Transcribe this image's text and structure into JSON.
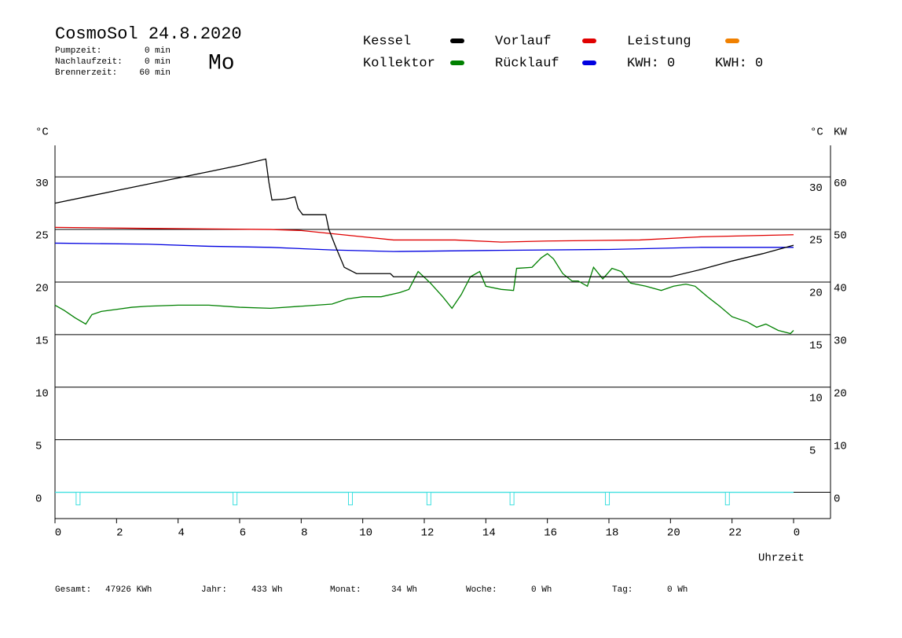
{
  "chart_data": {
    "type": "line",
    "title": "CosmoSol 24.8.2020",
    "weekday": "Mo",
    "weekday_color": "#0000c0",
    "info": [
      {
        "label": "Pumpzeit:",
        "value": "0 min"
      },
      {
        "label": "Nachlaufzeit:",
        "value": "0 min"
      },
      {
        "label": "Brennerzeit:",
        "value": "60 min"
      }
    ],
    "y_label": "°C",
    "y2_label_left": "°C",
    "y2_label": "KW",
    "y2_color": "#e69020",
    "x_label": "Uhrzeit",
    "xlim": [
      0,
      25.2
    ],
    "xticks": [
      0,
      2,
      4,
      6,
      8,
      10,
      12,
      14,
      16,
      18,
      20,
      22,
      {
        "value": 24,
        "label": "0"
      }
    ],
    "ylim": [
      -2.5,
      33
    ],
    "yticks": [
      0,
      5,
      10,
      15,
      20,
      25,
      30
    ],
    "y2lim": [
      -5,
      66
    ],
    "y2ticks": [
      0,
      10,
      20,
      30,
      40,
      50,
      60
    ],
    "grid": true,
    "series": [
      {
        "name": "Kessel",
        "color": "#000000",
        "x": [
          0,
          1,
          2,
          3,
          4,
          5,
          6,
          6.85,
          6.95,
          7.05,
          7.5,
          7.8,
          7.9,
          8.05,
          8.8,
          8.9,
          9.1,
          9.4,
          9.8,
          10.9,
          11,
          20,
          21,
          22,
          23,
          24
        ],
        "values": [
          27.5,
          28.1,
          28.7,
          29.3,
          29.9,
          30.5,
          31.1,
          31.7,
          29.5,
          27.8,
          27.9,
          28.1,
          27.0,
          26.4,
          26.4,
          25.0,
          23.5,
          21.4,
          20.8,
          20.8,
          20.5,
          20.5,
          21.2,
          22.0,
          22.7,
          23.5
        ]
      },
      {
        "name": "Kollektor",
        "color": "#008000",
        "x": [
          0,
          0.3,
          0.65,
          1.0,
          1.2,
          1.5,
          2,
          2.5,
          3,
          4,
          5,
          6,
          7,
          8,
          9,
          9.5,
          10,
          10.6,
          11.2,
          11.5,
          11.8,
          12.2,
          12.6,
          12.9,
          13.2,
          13.5,
          13.8,
          14.0,
          14.5,
          14.9,
          15.0,
          15.5,
          15.8,
          16.0,
          16.2,
          16.5,
          16.8,
          17.0,
          17.3,
          17.5,
          17.8,
          18.1,
          18.4,
          18.7,
          19.2,
          19.7,
          20.1,
          20.5,
          20.8,
          21.2,
          21.6,
          22,
          22.5,
          22.8,
          23.1,
          23.5,
          23.9,
          24
        ],
        "values": [
          17.8,
          17.3,
          16.6,
          16.0,
          16.9,
          17.2,
          17.4,
          17.6,
          17.7,
          17.8,
          17.8,
          17.6,
          17.5,
          17.7,
          17.9,
          18.4,
          18.6,
          18.6,
          19.0,
          19.3,
          21.0,
          19.9,
          18.6,
          17.5,
          18.8,
          20.5,
          21.0,
          19.6,
          19.3,
          19.2,
          21.3,
          21.4,
          22.3,
          22.7,
          22.2,
          20.8,
          20.1,
          20.1,
          19.6,
          21.4,
          20.3,
          21.3,
          21.0,
          19.9,
          19.6,
          19.2,
          19.6,
          19.8,
          19.6,
          18.6,
          17.7,
          16.7,
          16.2,
          15.7,
          16.0,
          15.4,
          15.1,
          15.4
        ]
      },
      {
        "name": "Vorlauf",
        "color": "#e00000",
        "x": [
          0,
          3,
          7,
          8,
          9,
          10,
          11,
          13,
          14.5,
          16,
          19,
          21,
          24
        ],
        "values": [
          25.2,
          25.1,
          25.0,
          24.9,
          24.6,
          24.3,
          24.0,
          24.0,
          23.8,
          23.9,
          24.0,
          24.3,
          24.5
        ]
      },
      {
        "name": "Rücklauf",
        "color": "#0000e0",
        "x": [
          0,
          3,
          5,
          7,
          9,
          11,
          14,
          18,
          21,
          24
        ],
        "values": [
          23.7,
          23.6,
          23.4,
          23.3,
          23.05,
          22.9,
          23.0,
          23.1,
          23.3,
          23.3
        ]
      },
      {
        "name": "Leistung",
        "color": "#f08000",
        "axis": "y2",
        "x": [],
        "values": []
      },
      {
        "color": "#40e0e0",
        "x": [
          0,
          24
        ],
        "values": [
          0,
          0
        ],
        "pulses": [
          {
            "x": 0.75,
            "value": -1.2
          },
          {
            "x": 5.85,
            "value": -1.2
          },
          {
            "x": 9.6,
            "value": -1.2
          },
          {
            "x": 12.15,
            "value": -1.2
          },
          {
            "x": 14.85,
            "value": -1.2
          },
          {
            "x": 17.95,
            "value": -1.2
          },
          {
            "x": 21.85,
            "value": -1.2
          }
        ]
      }
    ],
    "kwh_labels": [
      {
        "text": "KWH: 0",
        "color": "#e69020"
      },
      {
        "text": "KWH: 0",
        "color": "#800080"
      }
    ],
    "footer": [
      {
        "label": "Gesamt:",
        "value": "47926 KWh"
      },
      {
        "label": "Jahr:",
        "value": "433 Wh"
      },
      {
        "label": "Monat:",
        "value": "34 Wh"
      },
      {
        "label": "Woche:",
        "value": "0 Wh"
      },
      {
        "label": "Tag:",
        "value": "0 Wh"
      }
    ]
  }
}
